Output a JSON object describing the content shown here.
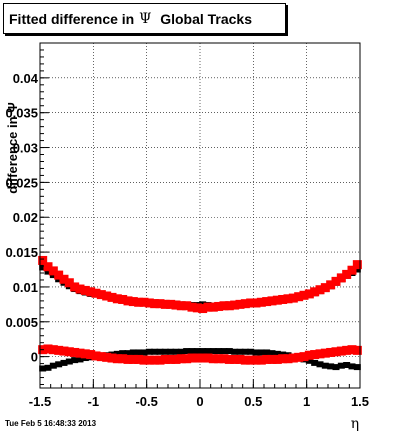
{
  "title": {
    "prefix": "Fitted difference in",
    "symbol": "Ψ",
    "suffix": "Global Tracks"
  },
  "footer": {
    "timestamp": "Tue Feb  5 16:48:33 2013"
  },
  "colors": {
    "series_black": "#000000",
    "series_red": "#ff0000",
    "grid": "#000000",
    "background": "#ffffff"
  },
  "chart_data": {
    "type": "scatter",
    "title": "Fitted difference in Ψ Global Tracks",
    "xlabel": "η",
    "ylabel": "difference in Ψ",
    "xlim": [
      -1.5,
      1.5
    ],
    "ylim": [
      -0.0045,
      0.045
    ],
    "grid": true,
    "legend": "none",
    "x_ticks": [
      -1.5,
      -1,
      -0.5,
      0,
      0.5,
      1,
      1.5
    ],
    "x_tick_labels": [
      "-1.5",
      "-1",
      "-0.5",
      "0",
      "0.5",
      "1",
      "1.5"
    ],
    "y_ticks": [
      0,
      0.005,
      0.01,
      0.015,
      0.02,
      0.025,
      0.03,
      0.035,
      0.04
    ],
    "y_tick_labels": [
      "0",
      "0.005",
      "0.01",
      "0.015",
      "0.02",
      "0.025",
      "0.03",
      "0.035",
      "0.04"
    ],
    "series": [
      {
        "color": "#000000",
        "marker": "square-small",
        "x": [
          -1.475,
          -1.425,
          -1.375,
          -1.325,
          -1.275,
          -1.225,
          -1.175,
          -1.125,
          -1.075,
          -1.025,
          -0.975,
          -0.925,
          -0.875,
          -0.825,
          -0.775,
          -0.725,
          -0.675,
          -0.625,
          -0.575,
          -0.525,
          -0.475,
          -0.425,
          -0.375,
          -0.325,
          -0.275,
          -0.225,
          -0.175,
          -0.125,
          -0.075,
          -0.025,
          0.025,
          0.075,
          0.125,
          0.175,
          0.225,
          0.275,
          0.325,
          0.375,
          0.425,
          0.475,
          0.525,
          0.575,
          0.625,
          0.675,
          0.725,
          0.775,
          0.825,
          0.875,
          0.925,
          0.975,
          1.025,
          1.075,
          1.125,
          1.175,
          1.225,
          1.275,
          1.325,
          1.375,
          1.425,
          1.475
        ],
        "y": [
          0.0128,
          0.0122,
          0.0117,
          0.0111,
          0.0106,
          0.0101,
          0.0097,
          0.0094,
          0.0092,
          0.009,
          0.0089,
          0.0088,
          0.0086,
          0.0085,
          0.0084,
          0.0082,
          0.0081,
          0.008,
          0.0079,
          0.0078,
          0.0078,
          0.0078,
          0.0077,
          0.0077,
          0.0076,
          0.0076,
          0.0075,
          0.0074,
          0.0074,
          0.0074,
          0.0075,
          0.0074,
          0.0073,
          0.0073,
          0.0074,
          0.0075,
          0.0075,
          0.0075,
          0.0076,
          0.0077,
          0.0078,
          0.0079,
          0.008,
          0.0081,
          0.0082,
          0.0083,
          0.0084,
          0.0085,
          0.0086,
          0.0088,
          0.0089,
          0.0091,
          0.0094,
          0.0097,
          0.0101,
          0.0106,
          0.0111,
          0.0116,
          0.012,
          0.0125
        ]
      },
      {
        "color": "#ff0000",
        "marker": "square-large",
        "x": [
          -1.475,
          -1.425,
          -1.375,
          -1.325,
          -1.275,
          -1.225,
          -1.175,
          -1.125,
          -1.075,
          -1.025,
          -0.975,
          -0.925,
          -0.875,
          -0.825,
          -0.775,
          -0.725,
          -0.675,
          -0.625,
          -0.575,
          -0.525,
          -0.475,
          -0.425,
          -0.375,
          -0.325,
          -0.275,
          -0.225,
          -0.175,
          -0.125,
          -0.075,
          -0.025,
          0.025,
          0.075,
          0.125,
          0.175,
          0.225,
          0.275,
          0.325,
          0.375,
          0.425,
          0.475,
          0.525,
          0.575,
          0.625,
          0.675,
          0.725,
          0.775,
          0.825,
          0.875,
          0.925,
          0.975,
          1.025,
          1.075,
          1.125,
          1.175,
          1.225,
          1.275,
          1.325,
          1.375,
          1.425,
          1.475
        ],
        "y": [
          0.0138,
          0.0129,
          0.0123,
          0.0117,
          0.0111,
          0.0106,
          0.01,
          0.0097,
          0.0095,
          0.0093,
          0.0091,
          0.0089,
          0.0087,
          0.0085,
          0.0083,
          0.0082,
          0.008,
          0.0079,
          0.0078,
          0.0078,
          0.0077,
          0.0076,
          0.0076,
          0.0075,
          0.0075,
          0.0074,
          0.0073,
          0.0073,
          0.0071,
          0.007,
          0.0069,
          0.0071,
          0.0071,
          0.0072,
          0.0073,
          0.0073,
          0.0074,
          0.0075,
          0.0076,
          0.0077,
          0.0077,
          0.0078,
          0.0079,
          0.008,
          0.0081,
          0.0082,
          0.0083,
          0.0084,
          0.0086,
          0.0088,
          0.009,
          0.0093,
          0.0096,
          0.0099,
          0.0103,
          0.0108,
          0.0113,
          0.0118,
          0.0124,
          0.0132
        ]
      },
      {
        "color": "#000000",
        "marker": "square-small",
        "x": [
          -1.475,
          -1.425,
          -1.375,
          -1.325,
          -1.275,
          -1.225,
          -1.175,
          -1.125,
          -1.075,
          -1.025,
          -0.975,
          -0.925,
          -0.875,
          -0.825,
          -0.775,
          -0.725,
          -0.675,
          -0.625,
          -0.575,
          -0.525,
          -0.475,
          -0.425,
          -0.375,
          -0.325,
          -0.275,
          -0.225,
          -0.175,
          -0.125,
          -0.075,
          -0.025,
          0.025,
          0.075,
          0.125,
          0.175,
          0.225,
          0.275,
          0.325,
          0.375,
          0.425,
          0.475,
          0.525,
          0.575,
          0.625,
          0.675,
          0.725,
          0.775,
          0.825,
          0.875,
          0.925,
          0.975,
          1.025,
          1.075,
          1.125,
          1.175,
          1.225,
          1.275,
          1.325,
          1.375,
          1.425,
          1.475
        ],
        "y": [
          -0.0017,
          -0.0016,
          -0.0013,
          -0.0011,
          -0.0009,
          -0.0007,
          -0.0005,
          -0.0004,
          -0.0002,
          -0.0001,
          0.0,
          0.0001,
          0.0002,
          0.0003,
          0.0004,
          0.0005,
          0.0005,
          0.0006,
          0.0006,
          0.0006,
          0.0007,
          0.0007,
          0.0007,
          0.0007,
          0.0007,
          0.0007,
          0.0007,
          0.0008,
          0.0008,
          0.0008,
          0.0008,
          0.0008,
          0.0008,
          0.0008,
          0.0008,
          0.0008,
          0.0007,
          0.0007,
          0.0007,
          0.0007,
          0.0006,
          0.0006,
          0.0006,
          0.0005,
          0.0004,
          0.0003,
          0.0002,
          0.0,
          -0.0002,
          -0.0004,
          -0.0006,
          -0.0009,
          -0.0011,
          -0.0013,
          -0.0014,
          -0.0015,
          -0.0013,
          -0.0012,
          -0.0014,
          -0.0015
        ]
      },
      {
        "color": "#ff0000",
        "marker": "square-large",
        "x": [
          -1.475,
          -1.425,
          -1.375,
          -1.325,
          -1.275,
          -1.225,
          -1.175,
          -1.125,
          -1.075,
          -1.025,
          -0.975,
          -0.925,
          -0.875,
          -0.825,
          -0.775,
          -0.725,
          -0.675,
          -0.625,
          -0.575,
          -0.525,
          -0.475,
          -0.425,
          -0.375,
          -0.325,
          -0.275,
          -0.225,
          -0.175,
          -0.125,
          -0.075,
          -0.025,
          0.025,
          0.075,
          0.125,
          0.175,
          0.225,
          0.275,
          0.325,
          0.375,
          0.425,
          0.475,
          0.525,
          0.575,
          0.625,
          0.675,
          0.725,
          0.775,
          0.825,
          0.875,
          0.925,
          0.975,
          1.025,
          1.075,
          1.125,
          1.175,
          1.225,
          1.275,
          1.325,
          1.375,
          1.425,
          1.475
        ],
        "y": [
          0.001,
          0.0011,
          0.001,
          0.0009,
          0.0008,
          0.0007,
          0.0006,
          0.0005,
          0.0004,
          0.0003,
          0.0001,
          0.0,
          -0.0001,
          -0.0002,
          -0.0003,
          -0.0003,
          -0.0004,
          -0.0004,
          -0.0004,
          -0.0005,
          -0.0005,
          -0.0005,
          -0.0005,
          -0.0004,
          -0.0004,
          -0.0004,
          -0.0003,
          -0.0003,
          -0.0002,
          -0.0002,
          -0.0002,
          -0.0002,
          -0.0003,
          -0.0003,
          -0.0003,
          -0.0004,
          -0.0004,
          -0.0004,
          -0.0005,
          -0.0005,
          -0.0005,
          -0.0005,
          -0.0004,
          -0.0004,
          -0.0004,
          -0.0003,
          -0.0003,
          -0.0002,
          -0.0001,
          0.0,
          0.0002,
          0.0003,
          0.0004,
          0.0005,
          0.0006,
          0.0007,
          0.0008,
          0.0009,
          0.001,
          0.0009
        ]
      }
    ]
  }
}
